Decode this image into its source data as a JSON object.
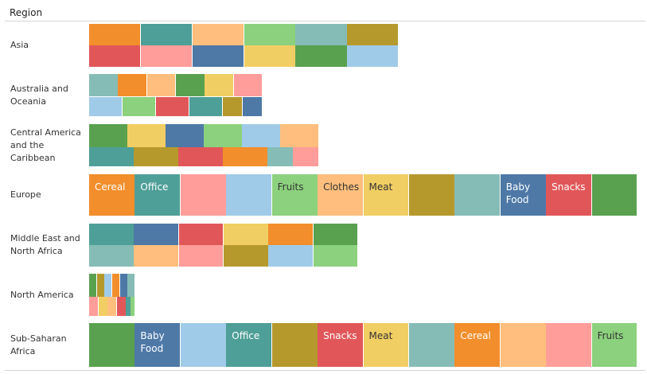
{
  "chart_data": {
    "type": "treemap",
    "header": "Region",
    "regions": [
      {
        "name": "Asia",
        "items": [
          {
            "color": "#f28e2b",
            "value": 10
          },
          {
            "color": "#4e9f98",
            "value": 10
          },
          {
            "color": "#ffbe7d",
            "value": 10
          },
          {
            "color": "#8cd17d",
            "value": 10
          },
          {
            "color": "#86bcb6",
            "value": 10
          },
          {
            "color": "#b6992d",
            "value": 10
          },
          {
            "color": "#e15759",
            "value": 10
          },
          {
            "color": "#ff9d9a",
            "value": 10
          },
          {
            "color": "#4e79a7",
            "value": 10
          },
          {
            "color": "#f1ce63",
            "value": 10
          },
          {
            "color": "#59a14f",
            "value": 10
          },
          {
            "color": "#a0cbe8",
            "value": 10
          }
        ]
      },
      {
        "name": "Australia and Oceania",
        "items": [
          {
            "color": "#86bcb6",
            "value": 5
          },
          {
            "color": "#f28e2b",
            "value": 5
          },
          {
            "color": "#ffbe7d",
            "value": 5
          },
          {
            "color": "#59a14f",
            "value": 5
          },
          {
            "color": "#f1ce63",
            "value": 5
          },
          {
            "color": "#ff9d9a",
            "value": 5
          },
          {
            "color": "#a0cbe8",
            "value": 5
          },
          {
            "color": "#8cd17d",
            "value": 5
          },
          {
            "color": "#e15759",
            "value": 5
          },
          {
            "color": "#4e9f98",
            "value": 5
          },
          {
            "color": "#b6992d",
            "value": 3
          },
          {
            "color": "#4e79a7",
            "value": 3
          }
        ]
      },
      {
        "name": "Central America and the Caribbean",
        "items": [
          {
            "color": "#59a14f",
            "value": 7
          },
          {
            "color": "#f1ce63",
            "value": 7
          },
          {
            "color": "#4e79a7",
            "value": 7
          },
          {
            "color": "#8cd17d",
            "value": 7
          },
          {
            "color": "#a0cbe8",
            "value": 7
          },
          {
            "color": "#ffbe7d",
            "value": 7
          },
          {
            "color": "#4e9f98",
            "value": 7
          },
          {
            "color": "#b6992d",
            "value": 7
          },
          {
            "color": "#e15759",
            "value": 7
          },
          {
            "color": "#f28e2b",
            "value": 7
          },
          {
            "color": "#86bcb6",
            "value": 4
          },
          {
            "color": "#ff9d9a",
            "value": 4
          }
        ]
      },
      {
        "name": "Europe",
        "items": [
          {
            "color": "#f28e2b",
            "value": 10,
            "label": "Cereal"
          },
          {
            "color": "#4e9f98",
            "value": 10,
            "label": "Office"
          },
          {
            "color": "#ff9d9a",
            "value": 10
          },
          {
            "color": "#a0cbe8",
            "value": 10
          },
          {
            "color": "#8cd17d",
            "value": 10,
            "label": "Fruits"
          },
          {
            "color": "#ffbe7d",
            "value": 10,
            "label": "Clothes"
          },
          {
            "color": "#f1ce63",
            "value": 10,
            "label": "Meat"
          },
          {
            "color": "#b6992d",
            "value": 10
          },
          {
            "color": "#86bcb6",
            "value": 10
          },
          {
            "color": "#4e79a7",
            "value": 10,
            "label": "Baby\nFood"
          },
          {
            "color": "#e15759",
            "value": 10,
            "label": "Snacks"
          },
          {
            "color": "#59a14f",
            "value": 10
          }
        ]
      },
      {
        "name": "Middle East and North Africa",
        "items": [
          {
            "color": "#4e9f98",
            "value": 10
          },
          {
            "color": "#4e79a7",
            "value": 10
          },
          {
            "color": "#e15759",
            "value": 10
          },
          {
            "color": "#f1ce63",
            "value": 10
          },
          {
            "color": "#f28e2b",
            "value": 10
          },
          {
            "color": "#59a14f",
            "value": 10
          },
          {
            "color": "#86bcb6",
            "value": 10
          },
          {
            "color": "#ffbe7d",
            "value": 10
          },
          {
            "color": "#ff9d9a",
            "value": 10
          },
          {
            "color": "#b6992d",
            "value": 10
          },
          {
            "color": "#a0cbe8",
            "value": 10
          },
          {
            "color": "#8cd17d",
            "value": 10
          }
        ]
      },
      {
        "name": "North America",
        "items": [
          {
            "color": "#59a14f",
            "value": 2
          },
          {
            "color": "#b6992d",
            "value": 2
          },
          {
            "color": "#a0cbe8",
            "value": 2
          },
          {
            "color": "#f28e2b",
            "value": 2
          },
          {
            "color": "#4e79a7",
            "value": 2
          },
          {
            "color": "#86bcb6",
            "value": 2
          },
          {
            "color": "#ff9d9a",
            "value": 2
          },
          {
            "color": "#f1ce63",
            "value": 2
          },
          {
            "color": "#ffbe7d",
            "value": 2
          },
          {
            "color": "#e15759",
            "value": 2
          },
          {
            "color": "#4e9f98",
            "value": 1
          },
          {
            "color": "#8cd17d",
            "value": 1
          }
        ]
      },
      {
        "name": "Sub-Saharan Africa",
        "items": [
          {
            "color": "#59a14f",
            "value": 10
          },
          {
            "color": "#4e79a7",
            "value": 10,
            "label": "Baby\nFood"
          },
          {
            "color": "#a0cbe8",
            "value": 10
          },
          {
            "color": "#4e9f98",
            "value": 10,
            "label": "Office"
          },
          {
            "color": "#b6992d",
            "value": 10
          },
          {
            "color": "#e15759",
            "value": 10,
            "label": "Snacks"
          },
          {
            "color": "#f1ce63",
            "value": 10,
            "label": "Meat"
          },
          {
            "color": "#86bcb6",
            "value": 10
          },
          {
            "color": "#f28e2b",
            "value": 10,
            "label": "Cereal"
          },
          {
            "color": "#ffbe7d",
            "value": 10
          },
          {
            "color": "#ff9d9a",
            "value": 10
          },
          {
            "color": "#8cd17d",
            "value": 10,
            "label": "Fruits"
          }
        ]
      }
    ]
  }
}
